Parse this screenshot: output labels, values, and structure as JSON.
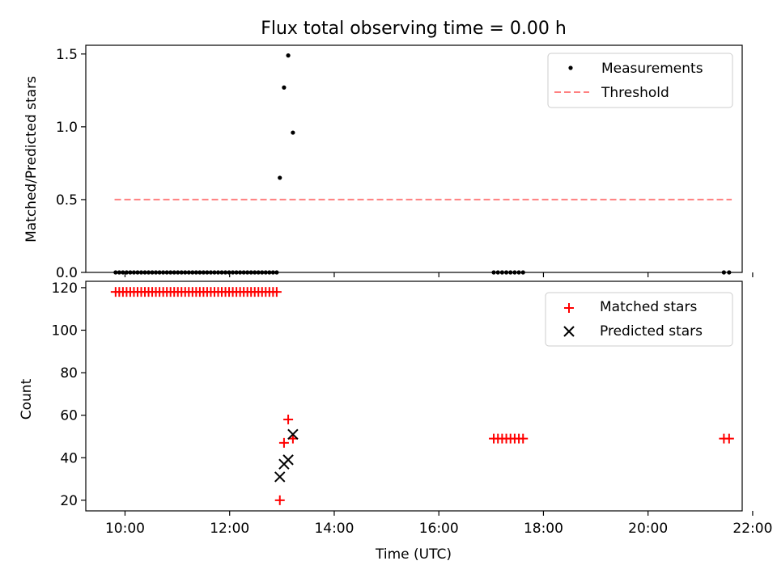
{
  "chart_data": [
    {
      "type": "scatter",
      "title": "Flux total observing time = 0.00 h",
      "xlabel": "",
      "ylabel": "Matched/Predicted stars",
      "xlim_hours": [
        9.25,
        21.8
      ],
      "ylim": [
        0,
        1.56
      ],
      "yticks": [
        "0.0",
        "0.5",
        "1.0",
        "1.5"
      ],
      "yticks_values": [
        0,
        0.5,
        1.0,
        1.5
      ],
      "legend_position": "top-right",
      "series": [
        {
          "name": "Measurements",
          "style": "point",
          "color": "#000000",
          "x": [
            9.82,
            9.89,
            9.96,
            10.03,
            10.1,
            10.17,
            10.24,
            10.31,
            10.38,
            10.45,
            10.52,
            10.59,
            10.66,
            10.73,
            10.8,
            10.87,
            10.94,
            11.01,
            11.08,
            11.15,
            11.22,
            11.29,
            11.36,
            11.43,
            11.5,
            11.57,
            11.64,
            11.71,
            11.78,
            11.85,
            11.92,
            11.99,
            12.06,
            12.13,
            12.2,
            12.27,
            12.34,
            12.41,
            12.48,
            12.55,
            12.62,
            12.69,
            12.76,
            12.83,
            12.9,
            12.96,
            13.04,
            13.12,
            13.21,
            17.05,
            17.13,
            17.21,
            17.29,
            17.37,
            17.45,
            17.53,
            17.61,
            21.45,
            21.55
          ],
          "y": [
            0,
            0,
            0,
            0,
            0,
            0,
            0,
            0,
            0,
            0,
            0,
            0,
            0,
            0,
            0,
            0,
            0,
            0,
            0,
            0,
            0,
            0,
            0,
            0,
            0,
            0,
            0,
            0,
            0,
            0,
            0,
            0,
            0,
            0,
            0,
            0,
            0,
            0,
            0,
            0,
            0,
            0,
            0,
            0,
            0,
            0.65,
            1.27,
            1.49,
            0.96,
            0,
            0,
            0,
            0,
            0,
            0,
            0,
            0,
            0,
            0
          ]
        },
        {
          "name": "Threshold",
          "style": "dashed-line",
          "color": "#ff8080",
          "x": [
            9.8,
            21.6
          ],
          "y": [
            0.5,
            0.5
          ]
        }
      ]
    },
    {
      "type": "scatter",
      "title": "",
      "xlabel": "Time (UTC)",
      "ylabel": "Count",
      "xlim_hours": [
        9.25,
        21.8
      ],
      "ylim": [
        15,
        123
      ],
      "yticks": [
        "20",
        "40",
        "60",
        "80",
        "100",
        "120"
      ],
      "yticks_values": [
        20,
        40,
        60,
        80,
        100,
        120
      ],
      "xticks": [
        "10:00",
        "12:00",
        "14:00",
        "16:00",
        "18:00",
        "20:00",
        "22:00"
      ],
      "xticks_hours": [
        10,
        12,
        14,
        16,
        18,
        20,
        22
      ],
      "legend_position": "top-right",
      "series": [
        {
          "name": "Matched stars",
          "style": "plus",
          "color": "#ff0000",
          "x": [
            9.82,
            9.89,
            9.96,
            10.03,
            10.1,
            10.17,
            10.24,
            10.31,
            10.38,
            10.45,
            10.52,
            10.59,
            10.66,
            10.73,
            10.8,
            10.87,
            10.94,
            11.01,
            11.08,
            11.15,
            11.22,
            11.29,
            11.36,
            11.43,
            11.5,
            11.57,
            11.64,
            11.71,
            11.78,
            11.85,
            11.92,
            11.99,
            12.06,
            12.13,
            12.2,
            12.27,
            12.34,
            12.41,
            12.48,
            12.55,
            12.62,
            12.69,
            12.76,
            12.83,
            12.9,
            12.96,
            13.04,
            13.12,
            13.21,
            17.05,
            17.13,
            17.21,
            17.29,
            17.37,
            17.45,
            17.53,
            17.61,
            21.45,
            21.55
          ],
          "y": [
            118,
            118,
            118,
            118,
            118,
            118,
            118,
            118,
            118,
            118,
            118,
            118,
            118,
            118,
            118,
            118,
            118,
            118,
            118,
            118,
            118,
            118,
            118,
            118,
            118,
            118,
            118,
            118,
            118,
            118,
            118,
            118,
            118,
            118,
            118,
            118,
            118,
            118,
            118,
            118,
            118,
            118,
            118,
            118,
            118,
            20,
            47,
            58,
            49,
            49,
            49,
            49,
            49,
            49,
            49,
            49,
            49,
            49,
            49
          ]
        },
        {
          "name": "Predicted stars",
          "style": "x",
          "color": "#000000",
          "x": [
            12.96,
            13.04,
            13.12,
            13.21
          ],
          "y": [
            31,
            37,
            39,
            51
          ]
        }
      ]
    }
  ]
}
